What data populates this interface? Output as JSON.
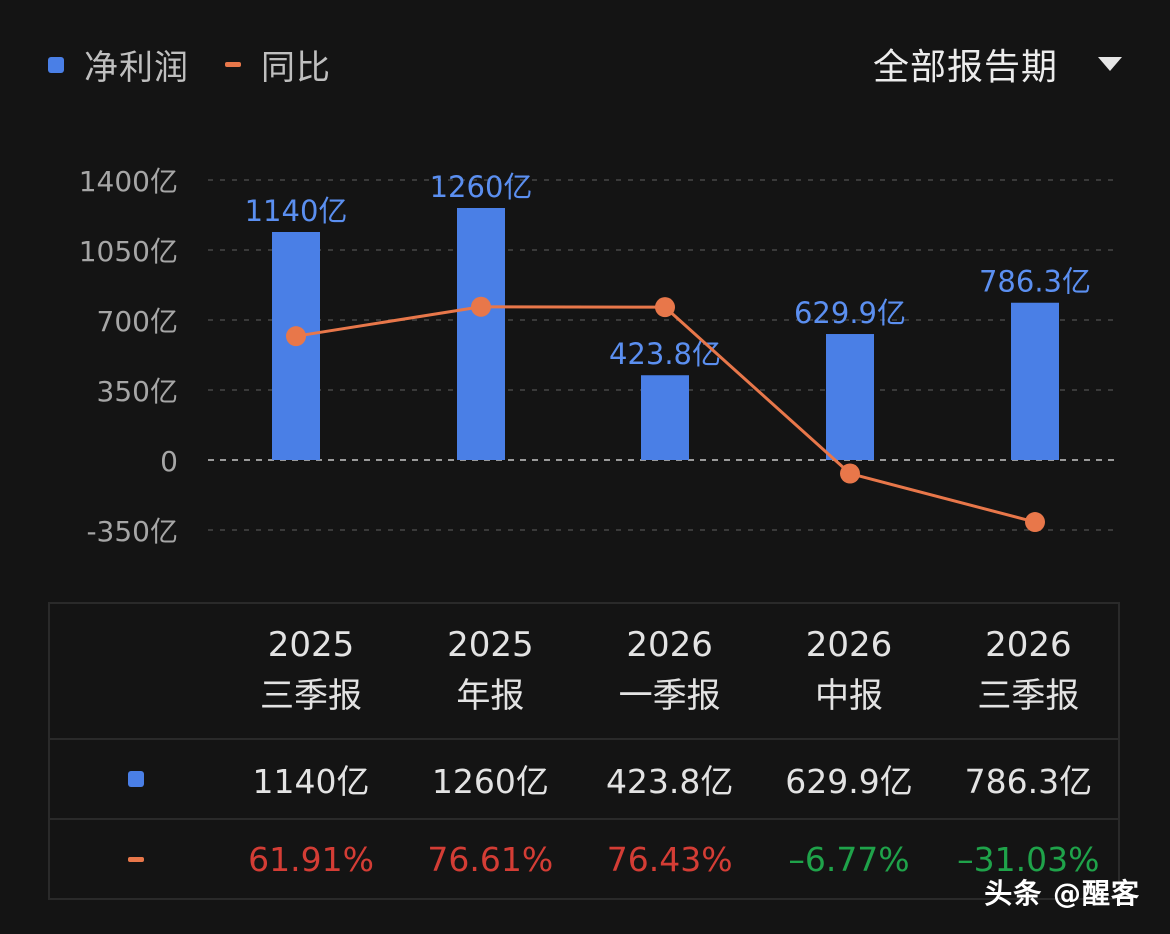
{
  "legend": {
    "bar_label": "净利润",
    "line_label": "同比"
  },
  "period_select": {
    "label": "全部报告期",
    "icon": "caret-down-icon"
  },
  "colors": {
    "bar": "#4a7fe6",
    "line": "#e8774a",
    "positive": "#d43d35",
    "negative": "#1fa34a",
    "background": "#141414"
  },
  "chart_data": {
    "type": "bar",
    "categories": [
      "2025 三季报",
      "2025 年报",
      "2026 一季报",
      "2026 中报",
      "2026 三季报"
    ],
    "y_ticks": [
      "1400亿",
      "1050亿",
      "700亿",
      "350亿",
      "0",
      "-350亿"
    ],
    "y_tick_values": [
      1400,
      1050,
      700,
      350,
      0,
      -350
    ],
    "ylim": [
      -350,
      1400
    ],
    "grid": true,
    "legend_position": "top-left",
    "series": [
      {
        "name": "净利润",
        "type": "bar",
        "values": [
          1140,
          1260,
          423.8,
          629.9,
          786.3
        ],
        "labels": [
          "1140亿",
          "1260亿",
          "423.8亿",
          "629.9亿",
          "786.3亿"
        ]
      },
      {
        "name": "同比",
        "type": "line",
        "values": [
          61.91,
          76.61,
          76.43,
          -6.77,
          -31.03
        ]
      }
    ]
  },
  "table": {
    "columns": [
      {
        "year": "2025",
        "period": "三季报"
      },
      {
        "year": "2025",
        "period": "年报"
      },
      {
        "year": "2026",
        "period": "一季报"
      },
      {
        "year": "2026",
        "period": "中报"
      },
      {
        "year": "2026",
        "period": "三季报"
      }
    ],
    "profit": [
      "1140亿",
      "1260亿",
      "423.8亿",
      "629.9亿",
      "786.3亿"
    ],
    "yoy": [
      "61.91%",
      "76.61%",
      "76.43%",
      "–6.77%",
      "–31.03%"
    ],
    "yoy_sign": [
      "pos",
      "pos",
      "pos",
      "neg",
      "neg"
    ]
  },
  "watermark": "头条 @醒客"
}
